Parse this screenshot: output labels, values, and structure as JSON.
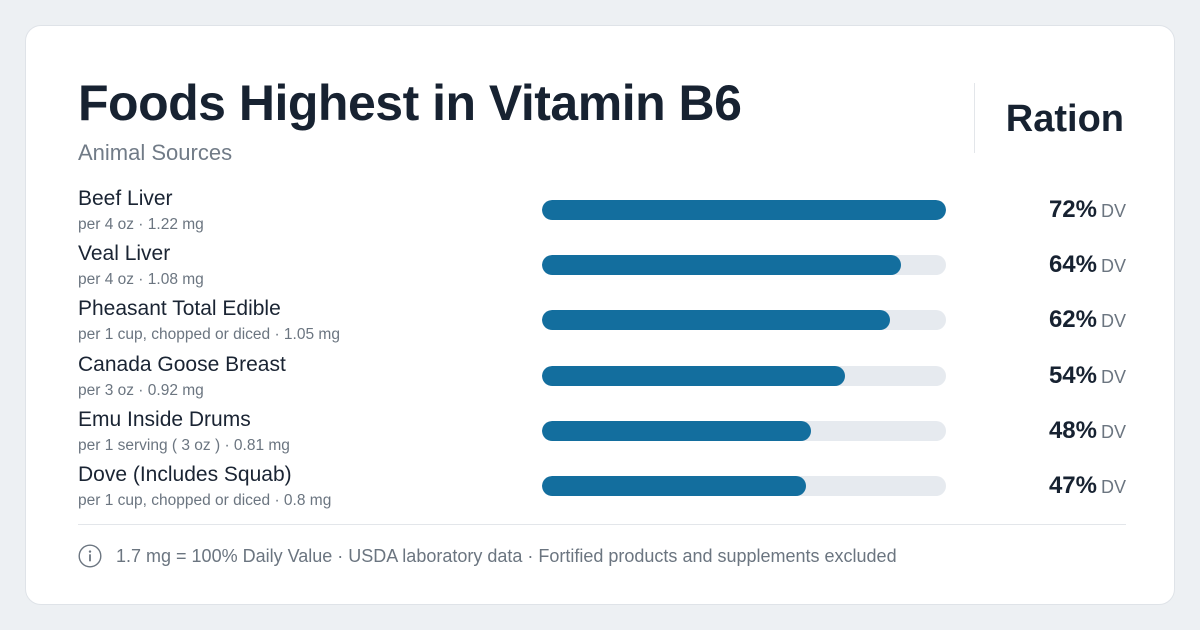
{
  "header": {
    "title": "Foods Highest in Vitamin B6",
    "subtitle": "Animal Sources",
    "brand": "Ration"
  },
  "chart_data": {
    "type": "bar",
    "orientation": "horizontal",
    "title": "Foods Highest in Vitamin B6",
    "subtitle": "Animal Sources",
    "unit_label": "DV",
    "categories": [
      "Beef Liver",
      "Veal Liver",
      "Pheasant Total Edible",
      "Canada Goose Breast",
      "Emu Inside Drums",
      "Dove (Includes Squab)"
    ],
    "values": [
      72,
      64,
      62,
      54,
      48,
      47
    ],
    "value_labels": [
      "72%",
      "64%",
      "62%",
      "54%",
      "48%",
      "47%"
    ],
    "servings": [
      "per 4 oz · 1.22 mg",
      "per 4 oz · 1.08 mg",
      "per 1 cup, chopped or diced · 1.05 mg",
      "per 3 oz · 0.92 mg",
      "per 1 serving ( 3 oz ) · 0.81 mg",
      "per 1 cup, chopped or diced · 0.8 mg"
    ],
    "xlim": [
      0,
      72
    ],
    "colors": {
      "bar": "#136e9e",
      "track": "#e6eaef"
    }
  },
  "footer": {
    "icon": "info-icon",
    "note": "1.7 mg = 100% Daily Value · USDA laboratory data · Fortified products and supplements excluded"
  }
}
